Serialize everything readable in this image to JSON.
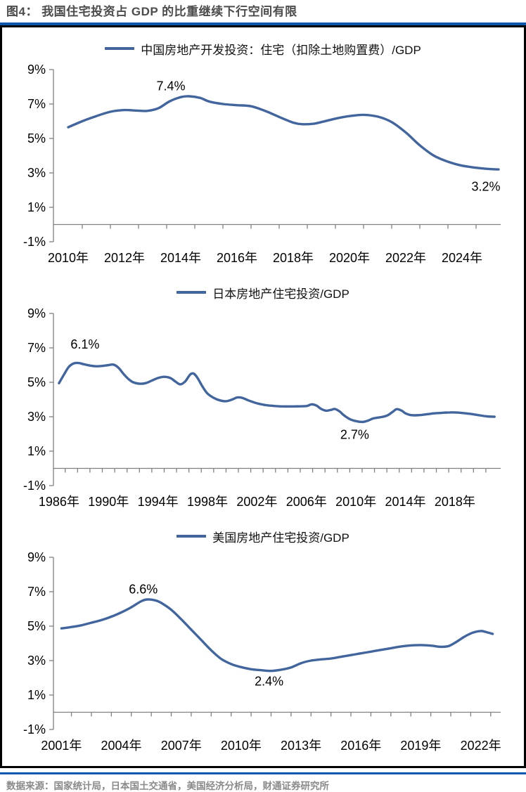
{
  "header": {
    "title": "图4：  我国住宅投资占 GDP 的比重继续下行空间有限"
  },
  "footer": {
    "source": "数据来源：国家统计局，日本国土交通省，美国经济分析局，财通证券研究所"
  },
  "colors": {
    "accent_blue": "#0D57AE",
    "line_blue": "#41659C",
    "axis_gray": "#808080",
    "title_gray": "#4C4C4C",
    "footer_gray": "#8A8A8A",
    "panel_border": "#000000"
  },
  "chart_data": [
    {
      "type": "line",
      "legend": "中国房地产开发投资：住宅（扣除土地购置费）/GDP",
      "line_color": "#41659C",
      "ylim": [
        -1,
        9
      ],
      "grid": false,
      "legend_position": "top-center",
      "yticks": [
        {
          "v": 9,
          "label": "9%"
        },
        {
          "v": 7,
          "label": "7%"
        },
        {
          "v": 5,
          "label": "5%"
        },
        {
          "v": 3,
          "label": "3%"
        },
        {
          "v": 1,
          "label": "1%"
        },
        {
          "v": -1,
          "label": "-1%"
        }
      ],
      "x_domain": [
        2009.475,
        2025.375
      ],
      "x_labels": [
        {
          "year": 2010,
          "text": "2010年"
        },
        {
          "year": 2012,
          "text": "2012年"
        },
        {
          "year": 2014,
          "text": "2014年"
        },
        {
          "year": 2016,
          "text": "2016年"
        },
        {
          "year": 2018,
          "text": "2018年"
        },
        {
          "year": 2020,
          "text": "2020年"
        },
        {
          "year": 2022,
          "text": "2022年"
        },
        {
          "year": 2024,
          "text": "2024年"
        }
      ],
      "x_minor_ticks": {
        "start": 2010.5,
        "step": 1,
        "count": 15
      },
      "annotations": [
        {
          "text": "7.4%",
          "year": 2013.65,
          "value": 8.05
        },
        {
          "text": "3.2%",
          "year": 2024.85,
          "value": 2.2
        }
      ],
      "points": [
        [
          2010,
          5.65
        ],
        [
          2010.5,
          6.0
        ],
        [
          2011,
          6.3
        ],
        [
          2011.5,
          6.55
        ],
        [
          2012,
          6.65
        ],
        [
          2012.4,
          6.62
        ],
        [
          2012.8,
          6.6
        ],
        [
          2013.2,
          6.75
        ],
        [
          2013.6,
          7.15
        ],
        [
          2014,
          7.4
        ],
        [
          2014.3,
          7.45
        ],
        [
          2014.7,
          7.35
        ],
        [
          2015,
          7.15
        ],
        [
          2015.5,
          7.0
        ],
        [
          2016,
          6.93
        ],
        [
          2016.5,
          6.87
        ],
        [
          2017,
          6.6
        ],
        [
          2017.5,
          6.25
        ],
        [
          2018,
          5.92
        ],
        [
          2018.3,
          5.83
        ],
        [
          2018.7,
          5.85
        ],
        [
          2019,
          5.95
        ],
        [
          2019.5,
          6.15
        ],
        [
          2020,
          6.3
        ],
        [
          2020.5,
          6.37
        ],
        [
          2021,
          6.27
        ],
        [
          2021.5,
          5.95
        ],
        [
          2022,
          5.35
        ],
        [
          2022.5,
          4.6
        ],
        [
          2023,
          4.0
        ],
        [
          2023.5,
          3.65
        ],
        [
          2024,
          3.42
        ],
        [
          2024.5,
          3.3
        ],
        [
          2025,
          3.22
        ],
        [
          2025.3,
          3.2
        ]
      ]
    },
    {
      "type": "line",
      "legend": "日本房地产住宅投资/GDP",
      "line_color": "#41659C",
      "ylim": [
        -1,
        9
      ],
      "grid": false,
      "legend_position": "top-center",
      "yticks": [
        {
          "v": 9,
          "label": "9%"
        },
        {
          "v": 7,
          "label": "7%"
        },
        {
          "v": 5,
          "label": "5%"
        },
        {
          "v": 3,
          "label": "3%"
        },
        {
          "v": 1,
          "label": "1%"
        },
        {
          "v": -1,
          "label": "-1%"
        }
      ],
      "x_domain": [
        1985.55,
        2021.7
      ],
      "x_labels": [
        {
          "year": 1986,
          "text": "1986年"
        },
        {
          "year": 1990,
          "text": "1990年"
        },
        {
          "year": 1994,
          "text": "1994年"
        },
        {
          "year": 1998,
          "text": "1998年"
        },
        {
          "year": 2002,
          "text": "2002年"
        },
        {
          "year": 2006,
          "text": "2006年"
        },
        {
          "year": 2010,
          "text": "2010年"
        },
        {
          "year": 2014,
          "text": "2014年"
        },
        {
          "year": 2018,
          "text": "2018年"
        }
      ],
      "x_minor_ticks": {
        "start": 1986.5,
        "step": 1,
        "count": 35
      },
      "annotations": [
        {
          "text": "6.1%",
          "year": 1988.1,
          "value": 7.2
        },
        {
          "text": "2.7%",
          "year": 2009.9,
          "value": 1.95
        }
      ],
      "points": [
        [
          1986,
          4.95
        ],
        [
          1986.4,
          5.45
        ],
        [
          1986.8,
          5.9
        ],
        [
          1987.2,
          6.1
        ],
        [
          1987.6,
          6.12
        ],
        [
          1988,
          6.05
        ],
        [
          1988.5,
          5.97
        ],
        [
          1989,
          5.93
        ],
        [
          1989.5,
          5.95
        ],
        [
          1990,
          6.0
        ],
        [
          1990.4,
          6.03
        ],
        [
          1990.8,
          5.85
        ],
        [
          1991.2,
          5.5
        ],
        [
          1991.6,
          5.2
        ],
        [
          1992,
          5.0
        ],
        [
          1992.5,
          4.92
        ],
        [
          1993,
          4.95
        ],
        [
          1993.5,
          5.1
        ],
        [
          1994,
          5.25
        ],
        [
          1994.5,
          5.32
        ],
        [
          1995,
          5.25
        ],
        [
          1995.4,
          5.05
        ],
        [
          1995.8,
          4.88
        ],
        [
          1996.2,
          5.05
        ],
        [
          1996.6,
          5.45
        ],
        [
          1996.9,
          5.5
        ],
        [
          1997.2,
          5.25
        ],
        [
          1997.6,
          4.75
        ],
        [
          1998,
          4.35
        ],
        [
          1998.5,
          4.1
        ],
        [
          1999,
          3.95
        ],
        [
          1999.5,
          3.9
        ],
        [
          2000,
          4.0
        ],
        [
          2000.4,
          4.12
        ],
        [
          2000.8,
          4.1
        ],
        [
          2001.3,
          3.95
        ],
        [
          2002,
          3.78
        ],
        [
          2002.5,
          3.7
        ],
        [
          2003,
          3.65
        ],
        [
          2003.5,
          3.62
        ],
        [
          2004,
          3.6
        ],
        [
          2005,
          3.6
        ],
        [
          2006,
          3.62
        ],
        [
          2006.4,
          3.72
        ],
        [
          2006.8,
          3.65
        ],
        [
          2007.2,
          3.45
        ],
        [
          2007.6,
          3.35
        ],
        [
          2008,
          3.4
        ],
        [
          2008.3,
          3.45
        ],
        [
          2008.7,
          3.3
        ],
        [
          2009,
          3.1
        ],
        [
          2009.4,
          2.9
        ],
        [
          2009.8,
          2.78
        ],
        [
          2010.2,
          2.72
        ],
        [
          2010.6,
          2.7
        ],
        [
          2011,
          2.78
        ],
        [
          2011.4,
          2.9
        ],
        [
          2011.8,
          2.95
        ],
        [
          2012.2,
          3.0
        ],
        [
          2012.6,
          3.1
        ],
        [
          2013,
          3.3
        ],
        [
          2013.3,
          3.44
        ],
        [
          2013.7,
          3.35
        ],
        [
          2014,
          3.2
        ],
        [
          2014.4,
          3.1
        ],
        [
          2014.8,
          3.08
        ],
        [
          2015.2,
          3.1
        ],
        [
          2015.8,
          3.15
        ],
        [
          2016.4,
          3.2
        ],
        [
          2017,
          3.23
        ],
        [
          2017.6,
          3.25
        ],
        [
          2018.2,
          3.24
        ],
        [
          2018.8,
          3.2
        ],
        [
          2019.4,
          3.15
        ],
        [
          2020,
          3.08
        ],
        [
          2020.6,
          3.02
        ],
        [
          2021.2,
          3.0
        ]
      ]
    },
    {
      "type": "line",
      "legend": "美国房地产住宅投资/GDP",
      "line_color": "#41659C",
      "ylim": [
        -1,
        9
      ],
      "grid": false,
      "legend_position": "top-center",
      "yticks": [
        {
          "v": 9,
          "label": "9%"
        },
        {
          "v": 7,
          "label": "7%"
        },
        {
          "v": 5,
          "label": "5%"
        },
        {
          "v": 3,
          "label": "3%"
        },
        {
          "v": 1,
          "label": "1%"
        },
        {
          "v": -1,
          "label": "-1%"
        }
      ],
      "x_domain": [
        2000.6,
        2023.0
      ],
      "x_labels": [
        {
          "year": 2001,
          "text": "2001年"
        },
        {
          "year": 2004,
          "text": "2004年"
        },
        {
          "year": 2007,
          "text": "2007年"
        },
        {
          "year": 2010,
          "text": "2010年"
        },
        {
          "year": 2013,
          "text": "2013年"
        },
        {
          "year": 2016,
          "text": "2016年"
        },
        {
          "year": 2019,
          "text": "2019年"
        },
        {
          "year": 2022,
          "text": "2022年"
        }
      ],
      "x_minor_ticks": {
        "start": 2001.5,
        "step": 1,
        "count": 22
      },
      "annotations": [
        {
          "text": "6.6%",
          "year": 2005.1,
          "value": 7.15
        },
        {
          "text": "2.4%",
          "year": 2011.4,
          "value": 1.8
        }
      ],
      "points": [
        [
          2001,
          4.87
        ],
        [
          2001.5,
          4.95
        ],
        [
          2002,
          5.05
        ],
        [
          2002.5,
          5.2
        ],
        [
          2003,
          5.35
        ],
        [
          2003.5,
          5.55
        ],
        [
          2004,
          5.8
        ],
        [
          2004.5,
          6.1
        ],
        [
          2005,
          6.45
        ],
        [
          2005.3,
          6.55
        ],
        [
          2005.7,
          6.5
        ],
        [
          2006,
          6.35
        ],
        [
          2006.5,
          5.95
        ],
        [
          2007,
          5.4
        ],
        [
          2007.5,
          4.8
        ],
        [
          2008,
          4.2
        ],
        [
          2008.5,
          3.6
        ],
        [
          2009,
          3.1
        ],
        [
          2009.5,
          2.8
        ],
        [
          2010,
          2.62
        ],
        [
          2010.5,
          2.5
        ],
        [
          2011,
          2.44
        ],
        [
          2011.5,
          2.4
        ],
        [
          2012,
          2.47
        ],
        [
          2012.5,
          2.6
        ],
        [
          2013,
          2.85
        ],
        [
          2013.5,
          3.0
        ],
        [
          2014,
          3.07
        ],
        [
          2014.5,
          3.12
        ],
        [
          2015,
          3.22
        ],
        [
          2015.5,
          3.32
        ],
        [
          2016,
          3.42
        ],
        [
          2016.5,
          3.52
        ],
        [
          2017,
          3.62
        ],
        [
          2017.5,
          3.72
        ],
        [
          2018,
          3.82
        ],
        [
          2018.5,
          3.88
        ],
        [
          2019,
          3.9
        ],
        [
          2019.5,
          3.87
        ],
        [
          2020,
          3.8
        ],
        [
          2020.4,
          3.85
        ],
        [
          2020.8,
          4.1
        ],
        [
          2021.2,
          4.4
        ],
        [
          2021.6,
          4.62
        ],
        [
          2022,
          4.72
        ],
        [
          2022.3,
          4.65
        ],
        [
          2022.6,
          4.55
        ]
      ]
    }
  ]
}
